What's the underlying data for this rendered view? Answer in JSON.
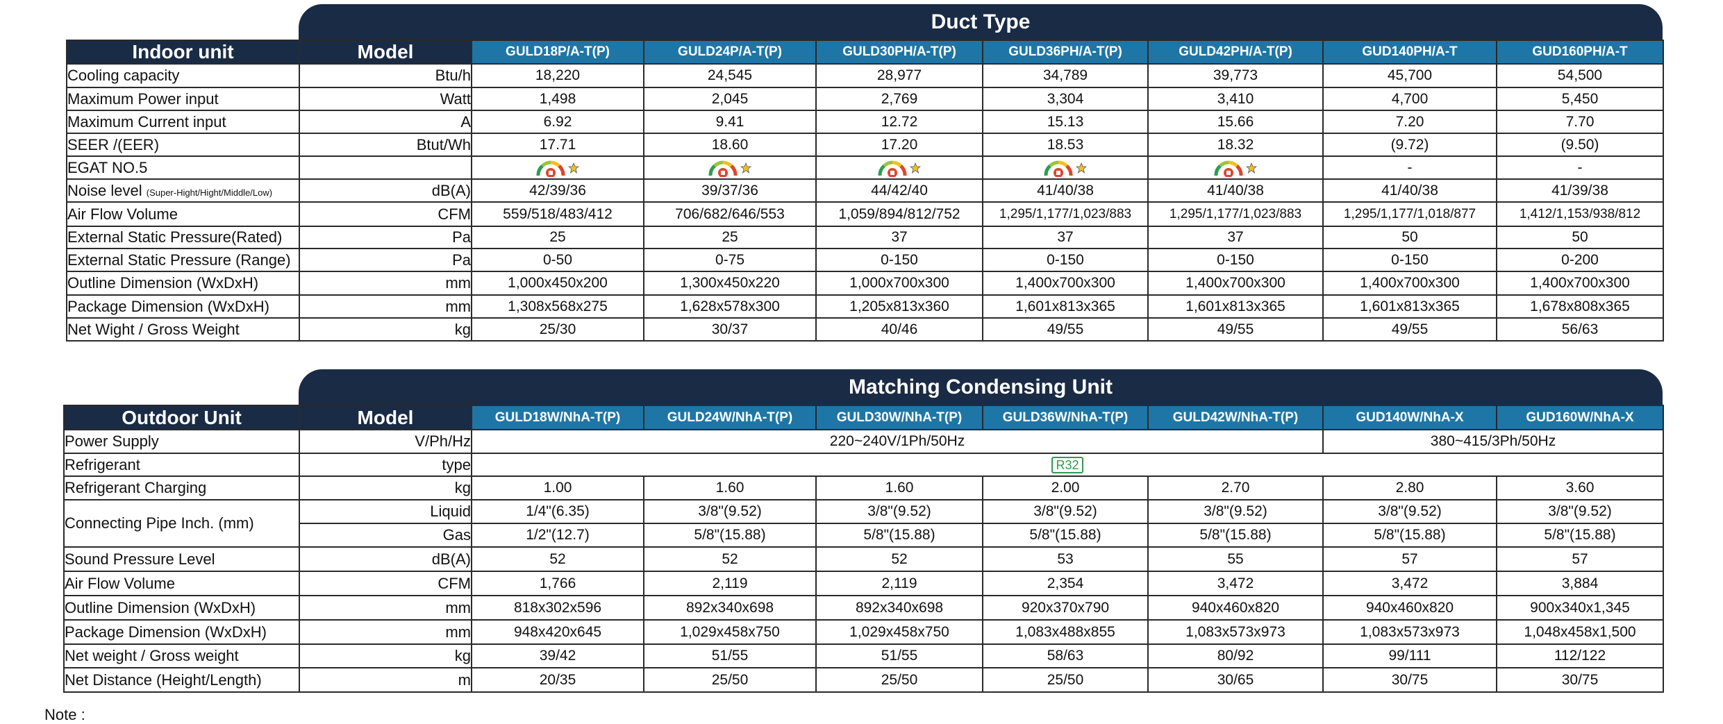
{
  "indoor": {
    "banner": "Duct Type",
    "corner": "Indoor unit",
    "model_label": "Model",
    "models": [
      "GULD18P/A-T(P)",
      "GULD24P/A-T(P)",
      "GULD30PH/A-T(P)",
      "GULD36PH/A-T(P)",
      "GULD42PH/A-T(P)",
      "GUD140PH/A-T",
      "GUD160PH/A-T"
    ],
    "rows": [
      {
        "label": "Cooling capacity",
        "unit": "Btu/h",
        "values": [
          "18,220",
          "24,545",
          "28,977",
          "34,789",
          "39,773",
          "45,700",
          "54,500"
        ]
      },
      {
        "label": "Maximum Power input",
        "unit": "Watt",
        "values": [
          "1,498",
          "2,045",
          "2,769",
          "3,304",
          "3,410",
          "4,700",
          "5,450"
        ]
      },
      {
        "label": "Maximum Current input",
        "unit": "A",
        "values": [
          "6.92",
          "9.41",
          "12.72",
          "15.13",
          "15.66",
          "7.20",
          "7.70"
        ]
      },
      {
        "label": "SEER /(EER)",
        "unit": "Btut/Wh",
        "values": [
          "17.71",
          "18.60",
          "17.20",
          "18.53",
          "18.32",
          "(9.72)",
          "(9.50)"
        ]
      },
      {
        "label": "EGAT NO.5",
        "unit": "",
        "values": [
          "egat-label",
          "egat-label",
          "egat-label",
          "egat-label",
          "egat-label",
          "-",
          "-"
        ]
      },
      {
        "label": "Noise level",
        "label_small": "(Super-Hight/Hight/Middle/Low)",
        "unit": "dB(A)",
        "values": [
          "42/39/36",
          "39/37/36",
          "44/42/40",
          "41/40/38",
          "41/40/38",
          "41/40/38",
          "41/39/38"
        ]
      },
      {
        "label": "Air Flow Volume",
        "unit": "CFM",
        "values": [
          "559/518/483/412",
          "706/682/646/553",
          "1,059/894/812/752",
          "1,295/1,177/1,023/883",
          "1,295/1,177/1,023/883",
          "1,295/1,177/1,018/877",
          "1,412/1,153/938/812"
        ]
      },
      {
        "label": "External Static Pressure(Rated)",
        "unit": "Pa",
        "values": [
          "25",
          "25",
          "37",
          "37",
          "37",
          "50",
          "50"
        ]
      },
      {
        "label": "External Static Pressure (Range)",
        "unit": "Pa",
        "values": [
          "0-50",
          "0-75",
          "0-150",
          "0-150",
          "0-150",
          "0-150",
          "0-200"
        ]
      },
      {
        "label": "Outline Dimension (WxDxH)",
        "unit": "mm",
        "values": [
          "1,000x450x200",
          "1,300x450x220",
          "1,000x700x300",
          "1,400x700x300",
          "1,400x700x300",
          "1,400x700x300",
          "1,400x700x300"
        ]
      },
      {
        "label": "Package Dimension (WxDxH)",
        "unit": "mm",
        "values": [
          "1,308x568x275",
          "1,628x578x300",
          "1,205x813x360",
          "1,601x813x365",
          "1,601x813x365",
          "1,601x813x365",
          "1,678x808x365"
        ]
      },
      {
        "label": "Net Wight / Gross Weight",
        "unit": "kg",
        "values": [
          "25/30",
          "30/37",
          "40/46",
          "49/55",
          "49/55",
          "49/55",
          "56/63"
        ]
      }
    ]
  },
  "outdoor": {
    "banner": "Matching Condensing Unit",
    "corner": "Outdoor Unit",
    "model_label": "Model",
    "models": [
      "GULD18W/NhA-T(P)",
      "GULD24W/NhA-T(P)",
      "GULD30W/NhA-T(P)",
      "GULD36W/NhA-T(P)",
      "GULD42W/NhA-T(P)",
      "GUD140W/NhA-X",
      "GUD160W/NhA-X"
    ],
    "power_supply": {
      "label": "Power Supply",
      "unit": "V/Ph/Hz",
      "single": "220~240V/1Ph/50Hz",
      "three": "380~415/3Ph/50Hz"
    },
    "refrigerant": {
      "label": "Refrigerant",
      "unit": "type",
      "value": "R32"
    },
    "charging": {
      "label": "Refrigerant Charging",
      "unit": "kg",
      "values": [
        "1.00",
        "1.60",
        "1.60",
        "2.00",
        "2.70",
        "2.80",
        "3.60"
      ]
    },
    "pipe": {
      "label": "Connecting Pipe Inch. (mm)",
      "liquid": {
        "unit": "Liquid",
        "values": [
          "1/4\"(6.35)",
          "3/8\"(9.52)",
          "3/8\"(9.52)",
          "3/8\"(9.52)",
          "3/8\"(9.52)",
          "3/8\"(9.52)",
          "3/8\"(9.52)"
        ]
      },
      "gas": {
        "unit": "Gas",
        "values": [
          "1/2\"(12.7)",
          "5/8\"(15.88)",
          "5/8\"(15.88)",
          "5/8\"(15.88)",
          "5/8\"(15.88)",
          "5/8\"(15.88)",
          "5/8\"(15.88)"
        ]
      }
    },
    "rows": [
      {
        "label": "Sound Pressure Level",
        "unit": "dB(A)",
        "values": [
          "52",
          "52",
          "52",
          "53",
          "55",
          "57",
          "57"
        ]
      },
      {
        "label": "Air Flow Volume",
        "unit": "CFM",
        "values": [
          "1,766",
          "2,119",
          "2,119",
          "2,354",
          "3,472",
          "3,472",
          "3,884"
        ]
      },
      {
        "label": "Outline Dimension (WxDxH)",
        "unit": "mm",
        "values": [
          "818x302x596",
          "892x340x698",
          "892x340x698",
          "920x370x790",
          "940x460x820",
          "940x460x820",
          "900x340x1,345"
        ]
      },
      {
        "label": "Package Dimension (WxDxH)",
        "unit": "mm",
        "values": [
          "948x420x645",
          "1,029x458x750",
          "1,029x458x750",
          "1,083x488x855",
          "1,083x573x973",
          "1,083x573x973",
          "1,048x458x1,500"
        ]
      },
      {
        "label": "Net weight / Gross weight",
        "unit": "kg",
        "values": [
          "39/42",
          "51/55",
          "51/55",
          "58/63",
          "80/92",
          "99/111",
          "112/122"
        ]
      },
      {
        "label": "Net  Distance (Height/Length)",
        "unit": "m",
        "values": [
          "20/35",
          "25/50",
          "25/50",
          "25/50",
          "30/65",
          "30/75",
          "30/75"
        ]
      }
    ]
  },
  "note": "Note :",
  "colors": {
    "navy": "#1a2b45",
    "model_blue": "#1e76a6",
    "r32_green": "#2e9b55"
  }
}
